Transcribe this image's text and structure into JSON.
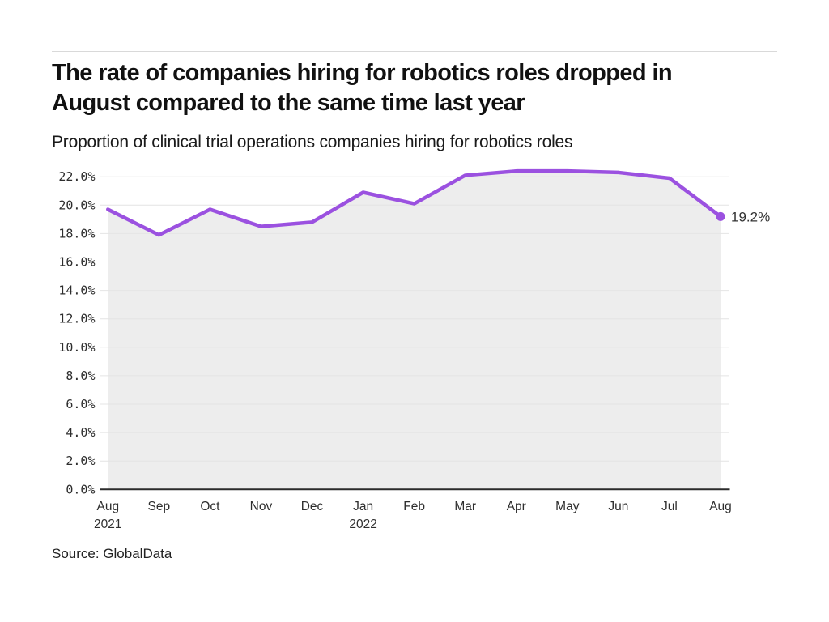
{
  "header": {
    "title_line1": "The rate of companies hiring for robotics roles dropped in",
    "title_line2": "August compared to the same time last year",
    "subtitle": "Proportion of clinical trial operations companies hiring for robotics roles"
  },
  "chart_data": {
    "type": "area",
    "title": "The rate of companies hiring for robotics roles dropped in August compared to the same time last year",
    "subtitle": "Proportion of clinical trial operations companies hiring for robotics roles",
    "categories": [
      "Aug",
      "Sep",
      "Oct",
      "Nov",
      "Dec",
      "Jan",
      "Feb",
      "Mar",
      "Apr",
      "May",
      "Jun",
      "Jul",
      "Aug"
    ],
    "category_sublabels": [
      {
        "index": 0,
        "label": "2021"
      },
      {
        "index": 5,
        "label": "2022"
      }
    ],
    "series": [
      {
        "name": "Proportion of clinical trial operations companies hiring for robotics roles",
        "values": [
          19.7,
          17.9,
          19.7,
          18.5,
          18.8,
          20.9,
          20.1,
          22.1,
          22.4,
          22.4,
          22.3,
          21.9,
          19.2
        ]
      }
    ],
    "end_point_label": "19.2%",
    "xlabel": "",
    "ylabel": "",
    "ylim": [
      0,
      22
    ],
    "ytick_step": 2,
    "ytick_suffix": "%",
    "ytick_decimals": 1,
    "grid": "horizontal",
    "legend_position": "none",
    "colors": {
      "line": "#9B51E0",
      "area_fill": "#EDEDED",
      "gridline": "#E4E4E4",
      "baseline": "#2B2B2B",
      "tick_label": "#2E2E2E",
      "annotation": "#333333"
    }
  },
  "source": {
    "label": "Source: GlobalData"
  }
}
